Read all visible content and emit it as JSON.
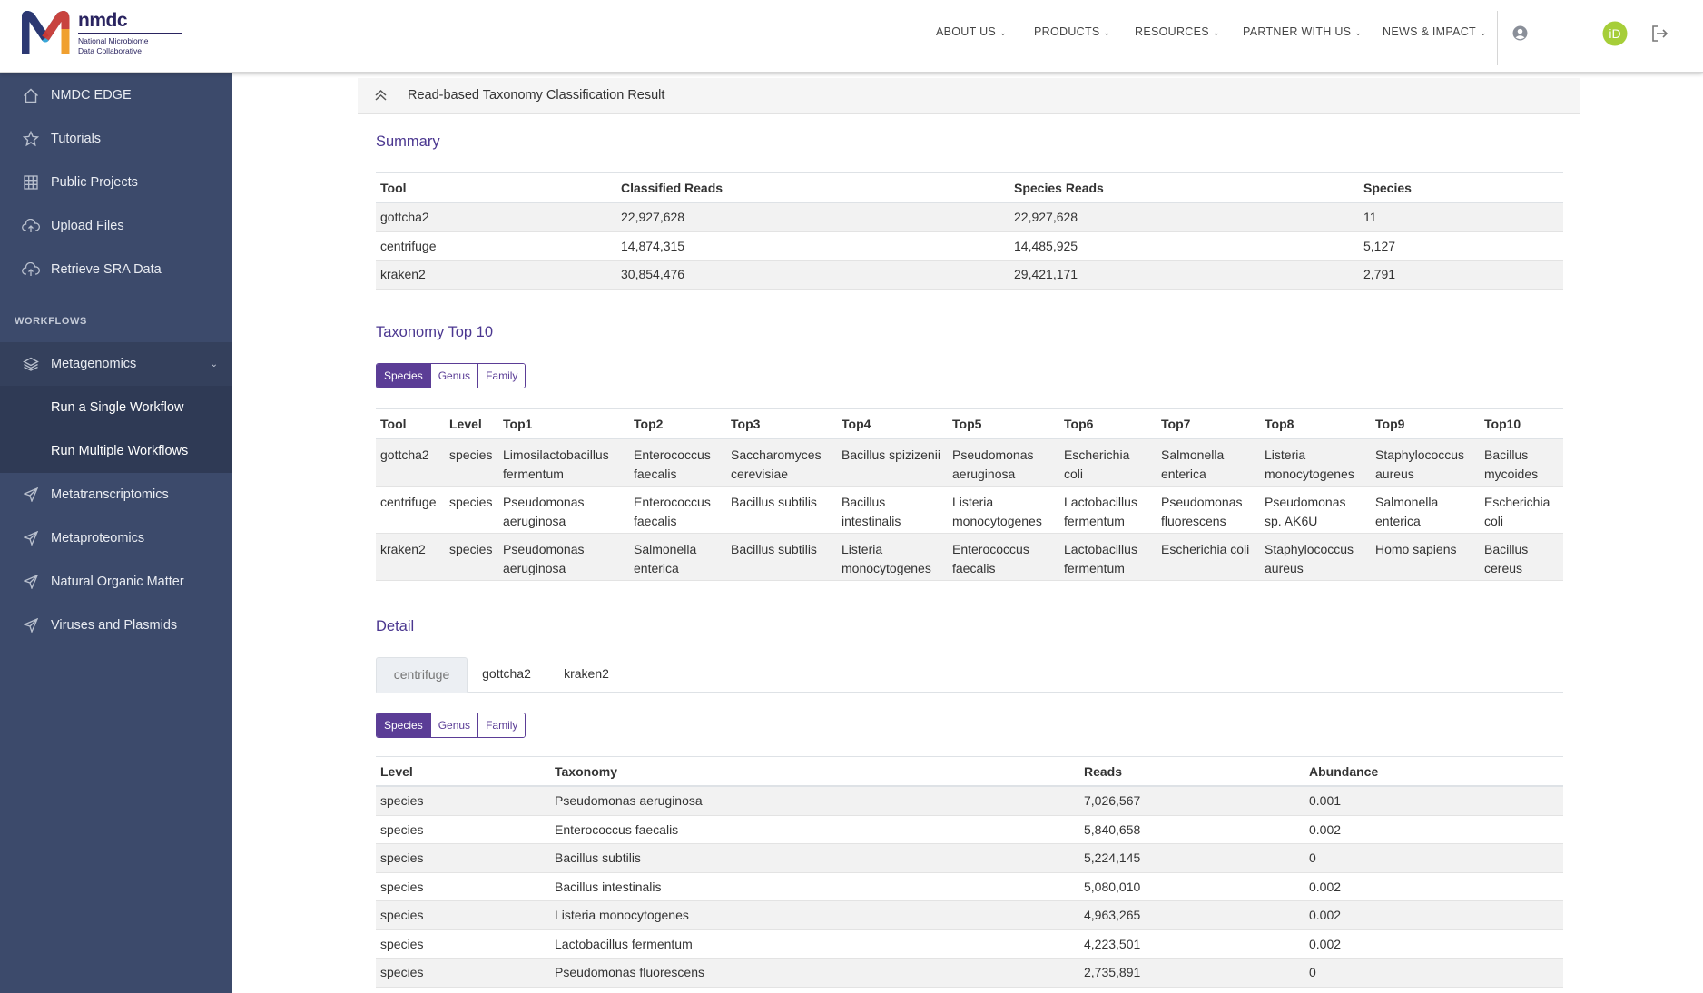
{
  "brand": {
    "name": "nmdc",
    "sub_line1": "National Microbiome",
    "sub_line2": "Data Collaborative",
    "colors": {
      "primary": "#2a2460",
      "accent_orange": "#f0a030",
      "accent_blue": "#3aa7d8",
      "accent_red": "#d8382f"
    }
  },
  "topnav": [
    {
      "label": "ABOUT US",
      "icon": "chevron-down-icon"
    },
    {
      "label": "PRODUCTS",
      "icon": "chevron-down-icon"
    },
    {
      "label": "RESOURCES",
      "icon": "chevron-down-icon"
    },
    {
      "label": "PARTNER WITH US",
      "icon": "chevron-down-icon"
    },
    {
      "label": "NEWS & IMPACT",
      "icon": "chevron-down-icon"
    }
  ],
  "header_icons": {
    "user": "user-circle-icon",
    "orcid": "iD",
    "logout": "logout-icon"
  },
  "sidebar": {
    "items": [
      {
        "label": "NMDC EDGE",
        "icon": "home-icon"
      },
      {
        "label": "Tutorials",
        "icon": "star-icon"
      },
      {
        "label": "Public Projects",
        "icon": "table-icon"
      },
      {
        "label": "Upload Files",
        "icon": "cloud-upload-icon"
      },
      {
        "label": "Retrieve SRA Data",
        "icon": "cloud-upload-icon"
      }
    ],
    "workflows_heading": "WORKFLOWS",
    "workflows": [
      {
        "label": "Metagenomics",
        "icon": "layers-icon",
        "expanded": true,
        "children": [
          "Run a Single Workflow",
          "Run Multiple Workflows"
        ]
      },
      {
        "label": "Metatranscriptomics",
        "icon": "send-icon"
      },
      {
        "label": "Metaproteomics",
        "icon": "send-icon"
      },
      {
        "label": "Natural Organic Matter",
        "icon": "send-icon"
      },
      {
        "label": "Viruses and Plasmids",
        "icon": "send-icon"
      }
    ]
  },
  "card": {
    "title": "Read-based Taxonomy Classification Result",
    "icon": "chevron-double-up-icon"
  },
  "summary": {
    "title": "Summary",
    "columns": [
      "Tool",
      "Classified Reads",
      "Species Reads",
      "Species"
    ],
    "rows": [
      [
        "gottcha2",
        "22,927,628",
        "22,927,628",
        "11"
      ],
      [
        "centrifuge",
        "14,874,315",
        "14,485,925",
        "5,127"
      ],
      [
        "kraken2",
        "30,854,476",
        "29,421,171",
        "2,791"
      ]
    ]
  },
  "top10": {
    "title": "Taxonomy Top 10",
    "filters": [
      "Species",
      "Genus",
      "Family"
    ],
    "active_filter": "Species",
    "columns": [
      "Tool",
      "Level",
      "Top1",
      "Top2",
      "Top3",
      "Top4",
      "Top5",
      "Top6",
      "Top7",
      "Top8",
      "Top9",
      "Top10"
    ],
    "rows": [
      [
        "gottcha2",
        "species",
        "Limosilactobacillus fermentum",
        "Enterococcus faecalis",
        "Saccharomyces cerevisiae",
        "Bacillus spizizenii",
        "Pseudomonas aeruginosa",
        "Escherichia coli",
        "Salmonella enterica",
        "Listeria monocytogenes",
        "Staphylococcus aureus",
        "Bacillus mycoides"
      ],
      [
        "centrifuge",
        "species",
        "Pseudomonas aeruginosa",
        "Enterococcus faecalis",
        "Bacillus subtilis",
        "Bacillus intestinalis",
        "Listeria monocytogenes",
        "Lactobacillus fermentum",
        "Pseudomonas fluorescens",
        "Pseudomonas sp. AK6U",
        "Salmonella enterica",
        "Escherichia coli"
      ],
      [
        "kraken2",
        "species",
        "Pseudomonas aeruginosa",
        "Salmonella enterica",
        "Bacillus subtilis",
        "Listeria monocytogenes",
        "Enterococcus faecalis",
        "Lactobacillus fermentum",
        "Escherichia coli",
        "Staphylococcus aureus",
        "Homo sapiens",
        "Bacillus cereus"
      ]
    ]
  },
  "detail": {
    "title": "Detail",
    "tabs": [
      "centrifuge",
      "gottcha2",
      "kraken2"
    ],
    "active_tab": "centrifuge",
    "filters": [
      "Species",
      "Genus",
      "Family"
    ],
    "active_filter": "Species",
    "columns": [
      "Level",
      "Taxonomy",
      "Reads",
      "Abundance"
    ],
    "rows": [
      [
        "species",
        "Pseudomonas aeruginosa",
        "7,026,567",
        "0.001"
      ],
      [
        "species",
        "Enterococcus faecalis",
        "5,840,658",
        "0.002"
      ],
      [
        "species",
        "Bacillus subtilis",
        "5,224,145",
        "0"
      ],
      [
        "species",
        "Bacillus intestinalis",
        "5,080,010",
        "0.002"
      ],
      [
        "species",
        "Listeria monocytogenes",
        "4,963,265",
        "0.002"
      ],
      [
        "species",
        "Lactobacillus fermentum",
        "4,223,501",
        "0.002"
      ],
      [
        "species",
        "Pseudomonas fluorescens",
        "2,735,891",
        "0"
      ]
    ]
  }
}
